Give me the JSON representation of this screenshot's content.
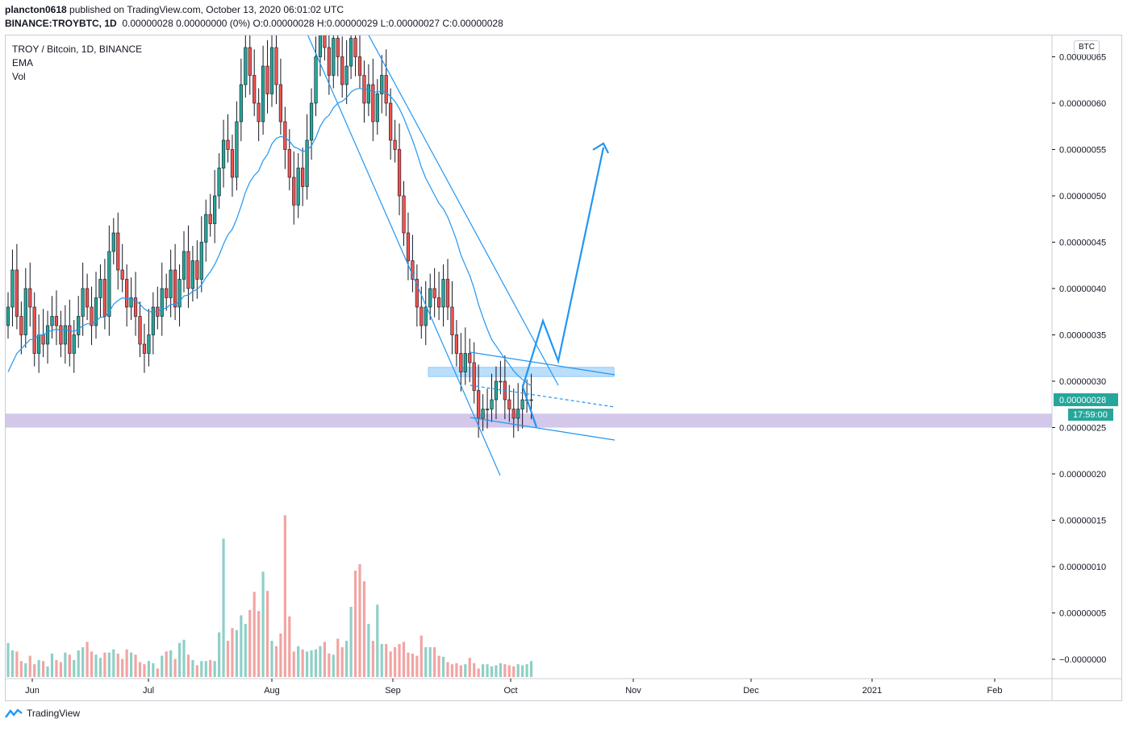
{
  "header": {
    "author": "plancton0618",
    "published": "published on TradingView.com, October 13, 2020 06:01:02 UTC",
    "symbol": "BINANCE:TROYBTC, 1D",
    "ohlc": "0.00000028 0.00000000 (0%) O:0.00000028 H:0.00000029 L:0.00000027 C:0.00000028"
  },
  "legend": {
    "title": "TROY / Bitcoin, 1D, BINANCE",
    "ema": "EMA",
    "vol": "Vol"
  },
  "currency_badge": "BTC",
  "footer": {
    "brand": "TradingView"
  },
  "chart_data": {
    "type": "candlestick",
    "price_axis_ticks": [
      "0.00000065",
      "0.00000060",
      "0.00000055",
      "0.00000050",
      "0.00000045",
      "0.00000040",
      "0.00000035",
      "0.00000030",
      "0.00000025",
      "0.00000020",
      "0.00000015",
      "0.00000010",
      "0.00000005",
      "−0.0000000"
    ],
    "price_axis_values": [
      65,
      60,
      55,
      50,
      45,
      40,
      35,
      30,
      25,
      20,
      15,
      10,
      5,
      0
    ],
    "price_unit_note": "values in 1e-8 BTC",
    "time_axis_ticks": [
      "Jun",
      "Jul",
      "Aug",
      "Sep",
      "Oct",
      "Nov",
      "Dec",
      "2021",
      "Feb"
    ],
    "current_price_label": "0.00000028",
    "countdown_label": "17:59:00",
    "colors": {
      "up": "#26a69a",
      "down": "#ef5350",
      "wick": "#131722",
      "ema": "#2196f3",
      "vol_up": "#8fcfc6",
      "vol_down": "#f1a5a3",
      "drawing": "#2196f3",
      "support_zone": "#d1c4e9",
      "resistance_zone": "#bbdefb",
      "price_label_bg": "#26a69a"
    },
    "closes": [
      38,
      42,
      37,
      35,
      40,
      38,
      33,
      35,
      34,
      36,
      37,
      36,
      34,
      36,
      33,
      35,
      37,
      40,
      38,
      36,
      39,
      41,
      37,
      44,
      46,
      42,
      41,
      38,
      39,
      37,
      34,
      33,
      35,
      38,
      37,
      40,
      39,
      42,
      38,
      41,
      44,
      40,
      43,
      41,
      45,
      48,
      47,
      50,
      53,
      56,
      55,
      52,
      58,
      62,
      66,
      63,
      60,
      58,
      64,
      61,
      66,
      62,
      58,
      55,
      52,
      49,
      53,
      51,
      56,
      60,
      65,
      68,
      66,
      63,
      67,
      65,
      62,
      64,
      67,
      65,
      63,
      60,
      62,
      58,
      61,
      63,
      60,
      56,
      55,
      50,
      46,
      43,
      41,
      38,
      36,
      38,
      40,
      39,
      38,
      41,
      38,
      35,
      33,
      31,
      33,
      32,
      29,
      26,
      27,
      27,
      28,
      30,
      30,
      28,
      27,
      26,
      27,
      28,
      28,
      28
    ],
    "ema": [
      31,
      32,
      33,
      33.5,
      34,
      34.5,
      34.5,
      35,
      35,
      35.3,
      35.5,
      35.6,
      35.5,
      35.6,
      35.4,
      35.4,
      35.6,
      36,
      36.2,
      36.2,
      36.5,
      36.9,
      36.9,
      37.5,
      38.3,
      38.7,
      39,
      38.9,
      38.9,
      38.7,
      38.3,
      37.8,
      37.5,
      37.5,
      37.5,
      37.8,
      37.9,
      38.3,
      38.3,
      38.6,
      39.2,
      39.3,
      39.7,
      39.9,
      40.4,
      41.2,
      41.8,
      42.6,
      43.6,
      44.8,
      45.8,
      46.4,
      47.5,
      48.9,
      50.4,
      51.5,
      52.2,
      52.7,
      53.8,
      54.5,
      55.6,
      56.2,
      56.4,
      56.3,
      55.9,
      55.3,
      55.1,
      54.8,
      54.9,
      55.4,
      56.3,
      57.5,
      58.3,
      58.7,
      59.5,
      60,
      60.2,
      60.6,
      61.2,
      61.5,
      61.6,
      61.5,
      61.5,
      61.2,
      61.2,
      61.3,
      61.2,
      60.7,
      60.2,
      59.4,
      58.4,
      57.2,
      56,
      54.6,
      53.1,
      51.9,
      51,
      50.1,
      49.2,
      48.6,
      47.7,
      46.5,
      45.2,
      43.6,
      42.5,
      41.4,
      40,
      38.3,
      36.9,
      35.6,
      34.5,
      33.8,
      33.1,
      32.4,
      31.8,
      31.1,
      30.6,
      30.2,
      29.8,
      29.5
    ],
    "volumes": [
      3.2,
      2.5,
      2.4,
      1.5,
      1.3,
      2,
      1.2,
      1.6,
      1.5,
      1,
      2.2,
      1.6,
      1.4,
      2.3,
      2.1,
      1.6,
      2.5,
      2.8,
      3.3,
      2.4,
      2.1,
      1.8,
      2.3,
      2.3,
      2.6,
      2.2,
      1.7,
      2.6,
      2.3,
      2.1,
      1.4,
      1.2,
      1.5,
      1.3,
      0.8,
      2,
      2.4,
      2.5,
      1.7,
      3.2,
      3.5,
      2.1,
      1.6,
      1.1,
      1.5,
      1.5,
      1.6,
      1.5,
      4.2,
      13,
      3.4,
      4.6,
      4.4,
      5.8,
      5,
      6.3,
      8,
      6.2,
      9.9,
      8.1,
      3.4,
      2.9,
      4.1,
      15.2,
      5.7,
      2.4,
      2.9,
      2.6,
      2.4,
      2.5,
      2.6,
      2.9,
      3.3,
      2.2,
      2.1,
      3.6,
      2.8,
      3.4,
      6.6,
      10,
      10.6,
      9,
      5,
      3.4,
      6.8,
      3.1,
      3.1,
      2.4,
      2.8,
      3.1,
      3.3,
      2.3,
      2.2,
      2,
      3.9,
      2.8,
      2.8,
      2.8,
      2,
      1.9,
      1.4,
      1.2,
      1.3,
      1.1,
      1.2,
      1.8,
      1.3,
      0.8,
      1.2,
      1.2,
      1,
      1.1,
      1.3,
      1.2,
      1.1,
      1,
      1.2,
      1.1,
      1.2,
      1.5
    ]
  }
}
